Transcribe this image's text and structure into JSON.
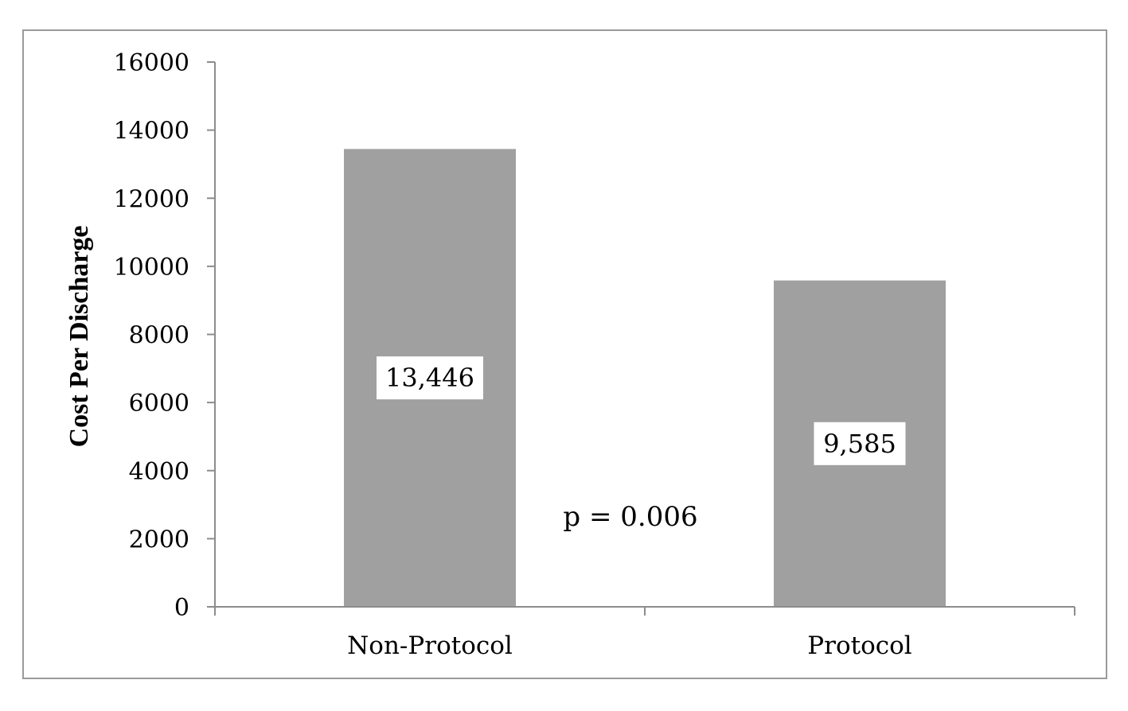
{
  "chart_data": {
    "type": "bar",
    "title": "",
    "xlabel": "",
    "ylabel": "Cost Per Discharge",
    "categories": [
      "Non-Protocol",
      "Protocol"
    ],
    "values": [
      13446,
      9585
    ],
    "data_labels": [
      "13,446",
      "9,585"
    ],
    "ylim": [
      0,
      16000
    ],
    "yticks": [
      0,
      2000,
      4000,
      6000,
      8000,
      10000,
      12000,
      14000,
      16000
    ],
    "ytick_labels": [
      "0",
      "2000",
      "4000",
      "6000",
      "8000",
      "10000",
      "12000",
      "14000",
      "16000"
    ],
    "grid": false,
    "legend": "none",
    "annotation": "p = 0.006",
    "bar_color": "#a0a0a0",
    "axis_color": "#8c8c8c"
  }
}
